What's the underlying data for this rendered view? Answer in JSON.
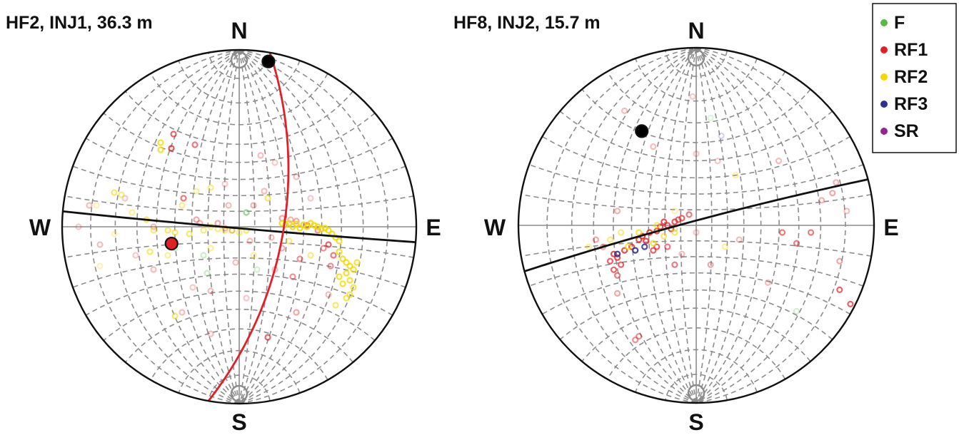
{
  "chart_data": [
    {
      "type": "scatter",
      "title": "HF2, INJ1, 36.3 m",
      "projection": "equal-angle stereonet (lower hemisphere)",
      "directions": {
        "north": "N",
        "south": "S",
        "west": "W",
        "east": "E"
      },
      "grid": true,
      "grid_step_deg": 10,
      "great_circles": [
        {
          "strike_deg": 95,
          "dip_deg": 89,
          "color": "#111111"
        },
        {
          "strike_deg": 10,
          "dip_deg": 62,
          "color": "#e31f26"
        }
      ],
      "highlight_poles": [
        {
          "trend_deg": 10,
          "plunge_deg": 3,
          "color": "#000000"
        },
        {
          "trend_deg": 256,
          "plunge_deg": 47,
          "color": "#e31f26"
        }
      ],
      "series": [
        {
          "name": "F",
          "color": "#58b947",
          "points": [
            [
              10,
              20,
              0.6
            ],
            [
              -50,
              -40,
              0.3
            ],
            [
              -90,
              -30,
              0.3
            ],
            [
              25,
              -60,
              0.25
            ],
            [
              -45,
              -65,
              0.3
            ]
          ]
        },
        {
          "name": "RF1",
          "color": "#e31f26",
          "points": [
            [
              -95,
              110,
              0.8
            ],
            [
              -92,
              130,
              0.7
            ],
            [
              -62,
              115,
              0.6
            ],
            [
              -78,
              40,
              0.6
            ],
            [
              -60,
              10,
              0.4
            ],
            [
              -55,
              5,
              0.35
            ],
            [
              -30,
              5,
              0.4
            ],
            [
              -20,
              -2,
              0.35
            ],
            [
              -10,
              -5,
              0.4
            ],
            [
              20,
              30,
              0.35
            ],
            [
              35,
              50,
              0.3
            ],
            [
              60,
              12,
              0.4
            ],
            [
              72,
              10,
              0.35
            ],
            [
              80,
              8,
              0.4
            ],
            [
              95,
              2,
              0.6
            ],
            [
              110,
              -5,
              0.5
            ],
            [
              125,
              -25,
              0.7
            ],
            [
              132,
              -40,
              0.6
            ],
            [
              128,
              -55,
              0.5
            ],
            [
              118,
              -30,
              0.5
            ],
            [
              85,
              -45,
              0.5
            ],
            [
              75,
              -70,
              0.5
            ],
            [
              50,
              -60,
              0.3
            ],
            [
              -5,
              -50,
              0.3
            ],
            [
              -120,
              0,
              0.3
            ],
            [
              -210,
              30,
              0.3
            ],
            [
              -225,
              0,
              0.25
            ],
            [
              -195,
              -25,
              0.3
            ],
            [
              -160,
              40,
              0.25
            ],
            [
              -145,
              -40,
              0.25
            ],
            [
              -120,
              -60,
              0.3
            ],
            [
              -80,
              -120,
              0.3
            ],
            [
              -40,
              -150,
              0.3
            ],
            [
              40,
              -155,
              0.7
            ],
            [
              80,
              -120,
              0.4
            ],
            [
              125,
              -95,
              0.3
            ],
            [
              30,
              100,
              0.3
            ],
            [
              50,
              90,
              0.25
            ],
            [
              80,
              70,
              0.3
            ],
            [
              100,
              40,
              0.25
            ],
            [
              -20,
              60,
              0.25
            ],
            [
              -40,
              -90,
              0.3
            ],
            [
              10,
              -100,
              0.25
            ],
            [
              60,
              -30,
              0.35
            ],
            [
              45,
              -15,
              0.3
            ],
            [
              15,
              -20,
              0.3
            ],
            [
              -65,
              -85,
              0.25
            ],
            [
              -15,
              30,
              0.3
            ]
          ]
        },
        {
          "name": "RF2",
          "color": "#f5d800",
          "points": [
            [
              -110,
              118,
              0.8
            ],
            [
              -110,
              108,
              0.8
            ],
            [
              -175,
              48,
              0.6
            ],
            [
              -165,
              45,
              0.5
            ],
            [
              -130,
              10,
              0.6
            ],
            [
              -120,
              -5,
              0.5
            ],
            [
              -100,
              -5,
              0.6
            ],
            [
              -90,
              -8,
              0.6
            ],
            [
              -70,
              -10,
              0.6
            ],
            [
              -50,
              -5,
              0.5
            ],
            [
              -40,
              0,
              0.5
            ],
            [
              -30,
              -3,
              0.5
            ],
            [
              -20,
              -5,
              0.5
            ],
            [
              -10,
              -5,
              0.55
            ],
            [
              0,
              -8,
              0.5
            ],
            [
              10,
              -5,
              0.6
            ],
            [
              40,
              40,
              0.6
            ],
            [
              60,
              5,
              0.9
            ],
            [
              65,
              3,
              0.9
            ],
            [
              70,
              5,
              0.9
            ],
            [
              75,
              0,
              0.9
            ],
            [
              80,
              4,
              0.9
            ],
            [
              85,
              -2,
              0.9
            ],
            [
              90,
              3,
              0.9
            ],
            [
              95,
              0,
              0.9
            ],
            [
              100,
              5,
              0.9
            ],
            [
              105,
              2,
              0.9
            ],
            [
              110,
              0,
              0.9
            ],
            [
              115,
              -3,
              0.9
            ],
            [
              120,
              -2,
              0.9
            ],
            [
              125,
              -5,
              0.9
            ],
            [
              130,
              -10,
              0.9
            ],
            [
              135,
              -15,
              0.85
            ],
            [
              140,
              -20,
              0.8
            ],
            [
              140,
              -35,
              0.8
            ],
            [
              145,
              -45,
              0.85
            ],
            [
              150,
              -50,
              0.85
            ],
            [
              155,
              -55,
              0.85
            ],
            [
              160,
              -60,
              0.8
            ],
            [
              150,
              -65,
              0.8
            ],
            [
              140,
              -70,
              0.8
            ],
            [
              155,
              -75,
              0.8
            ],
            [
              160,
              -85,
              0.75
            ],
            [
              145,
              -80,
              0.8
            ],
            [
              165,
              -50,
              0.75
            ],
            [
              155,
              -95,
              0.7
            ],
            [
              150,
              -100,
              0.7
            ],
            [
              135,
              -110,
              0.6
            ],
            [
              -40,
              55,
              0.5
            ],
            [
              -125,
              -35,
              0.6
            ],
            [
              -90,
              -125,
              0.6
            ],
            [
              -100,
              -40,
              0.4
            ],
            [
              20,
              -40,
              0.4
            ],
            [
              70,
              -20,
              0.5
            ],
            [
              100,
              -40,
              0.5
            ],
            [
              -60,
              50,
              0.4
            ],
            [
              -80,
              30,
              0.45
            ],
            [
              -150,
              20,
              0.4
            ],
            [
              -175,
              -10,
              0.3
            ],
            [
              -195,
              -55,
              0.3
            ],
            [
              -200,
              30,
              0.3
            ],
            [
              -40,
              -30,
              0.4
            ]
          ]
        },
        {
          "name": "RF3",
          "color": "#2e3192",
          "points": []
        },
        {
          "name": "SR",
          "color": "#92278f",
          "points": []
        }
      ]
    },
    {
      "type": "scatter",
      "title": "HF8, INJ2, 15.7 m",
      "projection": "equal-angle stereonet (lower hemisphere)",
      "directions": {
        "north": "N",
        "south": "S",
        "west": "W",
        "east": "E"
      },
      "grid": true,
      "grid_step_deg": 10,
      "great_circles": [
        {
          "strike_deg": 255,
          "dip_deg": 87,
          "color": "#111111"
        }
      ],
      "highlight_poles": [
        {
          "trend_deg": 330,
          "plunge_deg": 27,
          "color": "#000000"
        }
      ],
      "series": [
        {
          "name": "F",
          "color": "#58b947",
          "points": [
            [
              -30,
              -5,
              0.3
            ],
            [
              140,
              -120,
              0.25
            ],
            [
              20,
              150,
              0.2
            ]
          ]
        },
        {
          "name": "RF1",
          "color": "#e31f26",
          "points": [
            [
              -115,
              -40,
              0.8
            ],
            [
              -110,
              -45,
              0.8
            ],
            [
              -120,
              -50,
              0.7
            ],
            [
              -105,
              -55,
              0.7
            ],
            [
              -115,
              -62,
              0.7
            ],
            [
              -110,
              -70,
              0.6
            ],
            [
              -100,
              -35,
              0.8
            ],
            [
              -90,
              -30,
              0.8
            ],
            [
              -80,
              -20,
              0.8
            ],
            [
              -75,
              -15,
              0.85
            ],
            [
              -70,
              -22,
              0.8
            ],
            [
              -65,
              -10,
              0.85
            ],
            [
              -55,
              -8,
              0.8
            ],
            [
              -50,
              -2,
              0.8
            ],
            [
              -45,
              5,
              0.8
            ],
            [
              -40,
              0,
              0.75
            ],
            [
              -35,
              -5,
              0.8
            ],
            [
              -30,
              5,
              0.75
            ],
            [
              -25,
              8,
              0.7
            ],
            [
              -20,
              10,
              0.7
            ],
            [
              -10,
              15,
              0.6
            ],
            [
              -55,
              -30,
              0.7
            ],
            [
              -60,
              -35,
              0.7
            ],
            [
              -40,
              -30,
              0.6
            ],
            [
              -30,
              -55,
              0.6
            ],
            [
              20,
              -55,
              0.4
            ],
            [
              120,
              -10,
              0.6
            ],
            [
              140,
              -25,
              0.6
            ],
            [
              160,
              -10,
              0.6
            ],
            [
              200,
              -90,
              0.7
            ],
            [
              215,
              -110,
              0.7
            ],
            [
              200,
              -50,
              0.4
            ],
            [
              190,
              45,
              0.4
            ],
            [
              175,
              35,
              0.35
            ],
            [
              210,
              20,
              0.3
            ],
            [
              195,
              60,
              0.35
            ],
            [
              -85,
              -160,
              0.5
            ],
            [
              -80,
              -155,
              0.5
            ],
            [
              -110,
              -95,
              0.4
            ],
            [
              -110,
              20,
              0.35
            ],
            [
              -140,
              -20,
              0.4
            ],
            [
              -130,
              -30,
              0.4
            ],
            [
              60,
              -20,
              0.3
            ],
            [
              30,
              90,
              0.25
            ],
            [
              -60,
              110,
              0.3
            ],
            [
              0,
              100,
              0.25
            ],
            [
              -5,
              180,
              0.25
            ],
            [
              -100,
              160,
              0.3
            ],
            [
              100,
              -80,
              0.3
            ],
            [
              115,
              90,
              0.3
            ],
            [
              0,
              -10,
              0.25
            ],
            [
              -20,
              -40,
              0.3
            ]
          ]
        },
        {
          "name": "RF2",
          "color": "#f5d800",
          "points": [
            [
              -95,
              -30,
              0.7
            ],
            [
              -80,
              -10,
              0.7
            ],
            [
              -60,
              -25,
              0.7
            ],
            [
              -45,
              -15,
              0.6
            ],
            [
              -30,
              -10,
              0.6
            ],
            [
              -55,
              0,
              0.6
            ],
            [
              -120,
              -20,
              0.5
            ],
            [
              -105,
              -10,
              0.5
            ],
            [
              -150,
              -30,
              0.4
            ],
            [
              40,
              -30,
              0.4
            ],
            [
              55,
              70,
              0.4
            ],
            [
              -30,
              20,
              0.3
            ]
          ]
        },
        {
          "name": "RF3",
          "color": "#2e3192",
          "points": [
            [
              -110,
              -40,
              0.9
            ],
            [
              -85,
              -35,
              0.9
            ],
            [
              -72,
              -30,
              0.85
            ],
            [
              35,
              125,
              0.2
            ]
          ]
        },
        {
          "name": "SR",
          "color": "#92278f",
          "points": []
        }
      ]
    }
  ],
  "legend": [
    {
      "label": "F",
      "color": "#58b947"
    },
    {
      "label": "RF1",
      "color": "#e31f26"
    },
    {
      "label": "RF2",
      "color": "#f5d800"
    },
    {
      "label": "RF3",
      "color": "#2e3192"
    },
    {
      "label": "SR",
      "color": "#92278f"
    }
  ]
}
